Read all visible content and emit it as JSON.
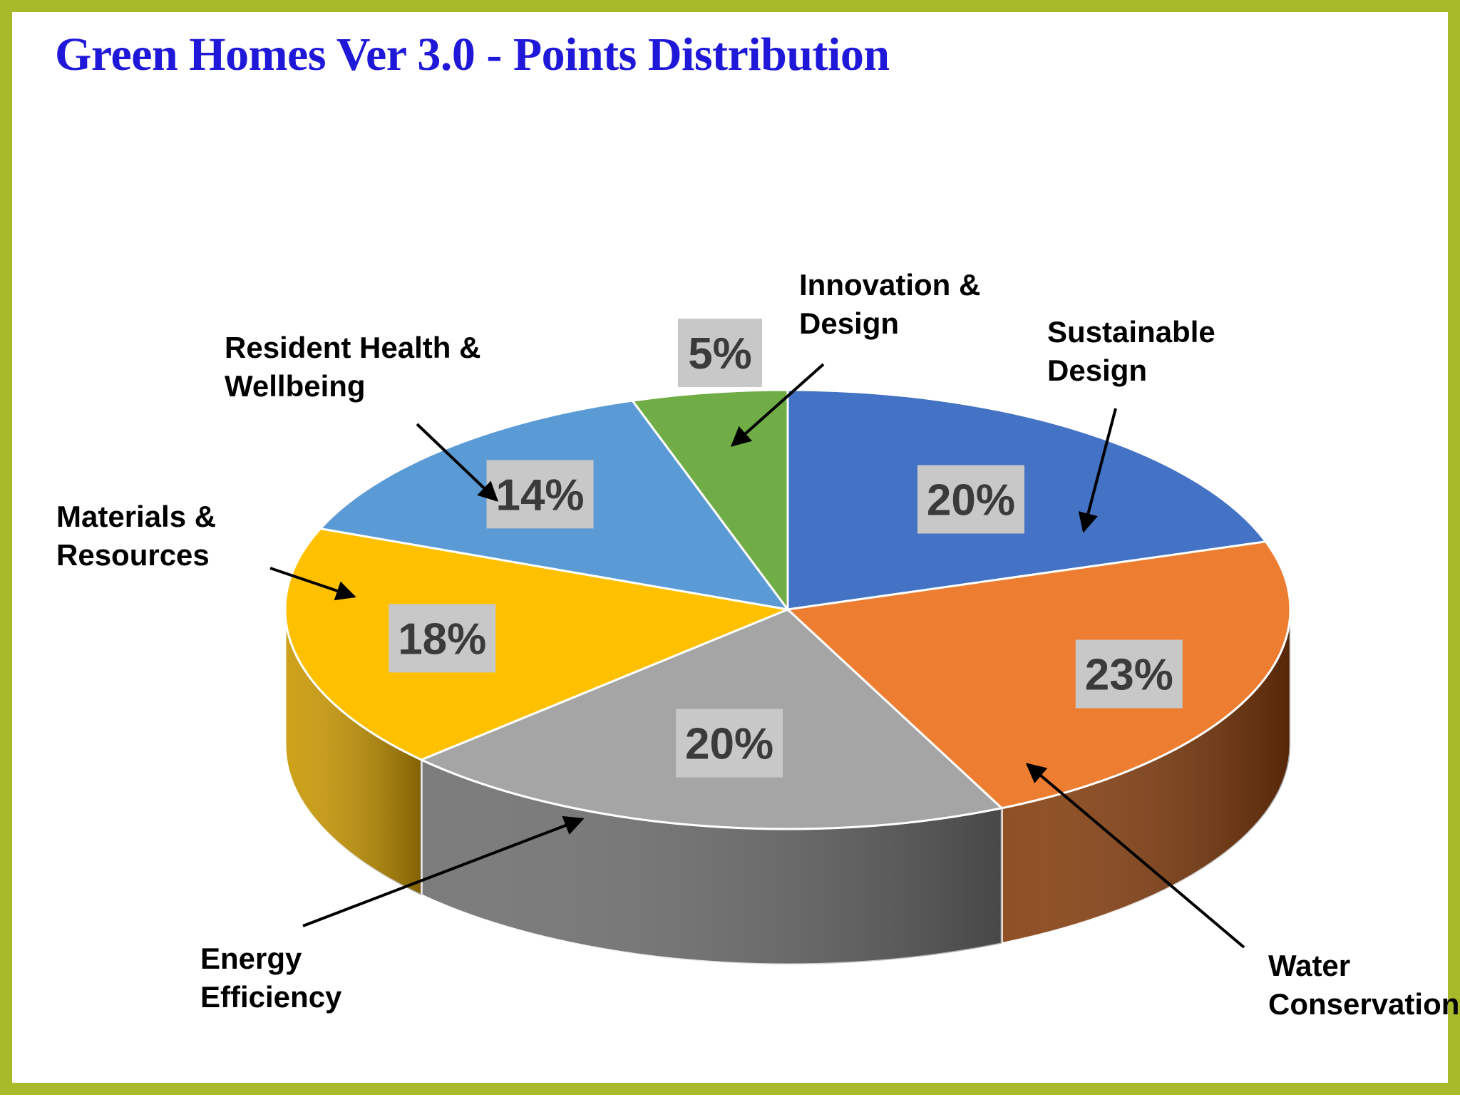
{
  "title": "Green Homes Ver 3.0 - Points Distribution",
  "chart_data": {
    "type": "pie",
    "style": "3d",
    "values_unit": "%",
    "slices": [
      {
        "name": "Sustainable Design",
        "label_lines": [
          "Sustainable",
          "Design"
        ],
        "value": 20,
        "value_label": "20%",
        "color": "#4472c4",
        "side_color": "#2f5597"
      },
      {
        "name": "Water Conservation",
        "label_lines": [
          "Water",
          "Conservation"
        ],
        "value": 23,
        "value_label": "23%",
        "color": "#ed7d31",
        "side_color": "#843c0c"
      },
      {
        "name": "Energy Efficiency",
        "label_lines": [
          "Energy",
          "Efficiency"
        ],
        "value": 20,
        "value_label": "20%",
        "color": "#a5a5a5",
        "side_color": "#6e6e6e"
      },
      {
        "name": "Materials & Resources",
        "label_lines": [
          "Materials &",
          "Resources"
        ],
        "value": 18,
        "value_label": "18%",
        "color": "#ffc000",
        "side_color": "#c99700"
      },
      {
        "name": "Resident Health & Wellbeing",
        "label_lines": [
          "Resident Health &",
          "Wellbeing"
        ],
        "value": 14,
        "value_label": "14%",
        "color": "#5b9bd5",
        "side_color": "#3a6e9e"
      },
      {
        "name": "Innovation & Design",
        "label_lines": [
          "Innovation  &",
          "Design"
        ],
        "value": 5,
        "value_label": "5%",
        "color": "#70ad47",
        "side_color": "#4e7d30"
      }
    ],
    "legend": "none",
    "labels": "callouts with arrows"
  }
}
